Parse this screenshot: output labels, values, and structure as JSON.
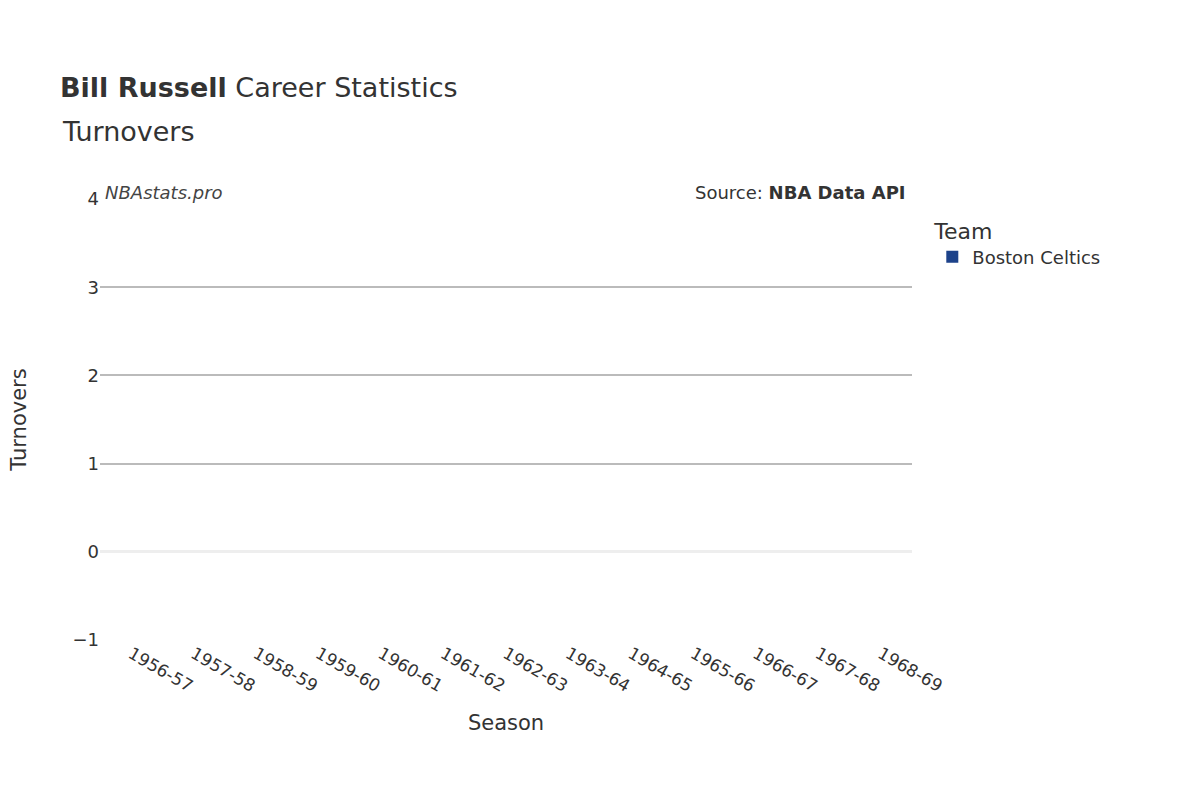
{
  "chart_data": {
    "type": "bar",
    "title_bold": "Bill Russell",
    "title": "Career Statistics",
    "subtitle": "Turnovers",
    "watermark": "NBAstats.pro",
    "source": {
      "label": "Source:",
      "text": "NBA Data API"
    },
    "x_label": "Season",
    "y_label": "Turnovers",
    "legend_title": "Team",
    "legend": "right",
    "grid": true,
    "categories": [
      "1956-57",
      "1957-58",
      "1958-59",
      "1959-60",
      "1960-61",
      "1961-62",
      "1962-63",
      "1963-64",
      "1964-65",
      "1965-66",
      "1966-67",
      "1967-68",
      "1968-69"
    ],
    "series": [
      {
        "name": "Boston Celtics",
        "color": "#1d428a",
        "values": [
          null,
          null,
          null,
          null,
          null,
          null,
          null,
          null,
          null,
          null,
          null,
          null,
          null
        ]
      }
    ],
    "ylim": [
      -1,
      4
    ],
    "yticks": [
      {
        "value": -1,
        "label": "−1"
      },
      0,
      1,
      2,
      3,
      4
    ]
  }
}
